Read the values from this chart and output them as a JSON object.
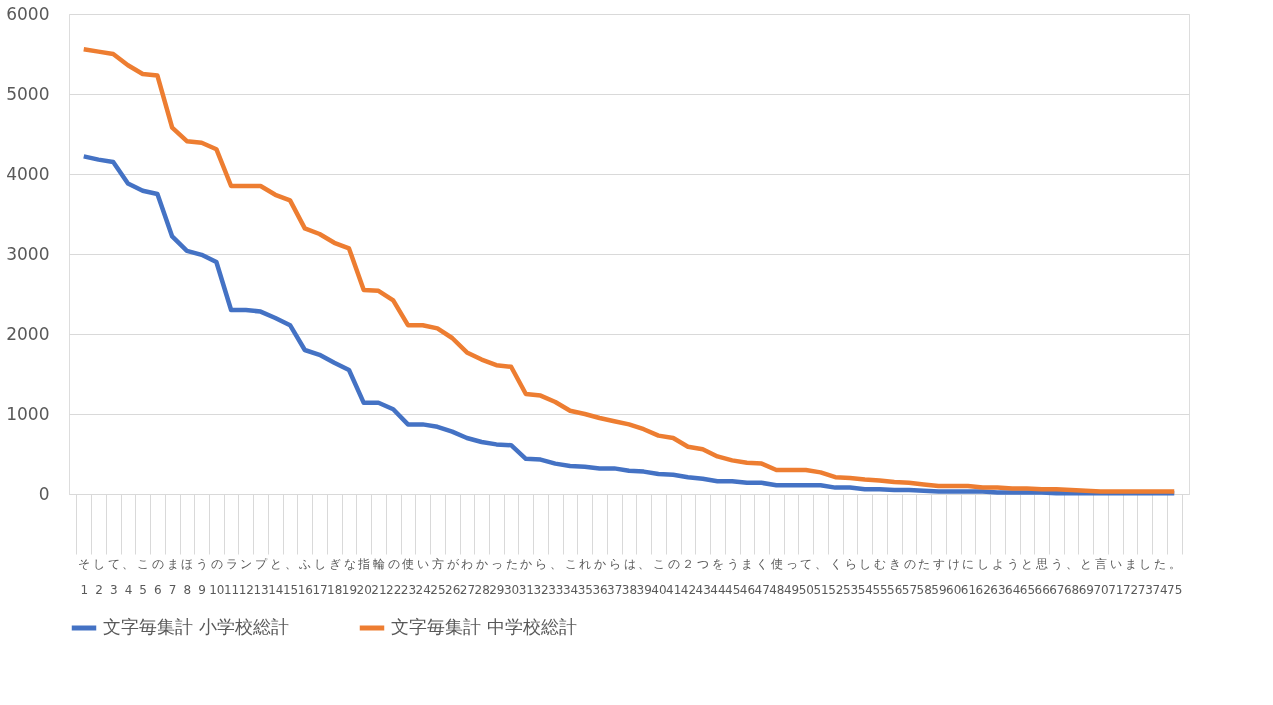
{
  "chart_data": {
    "type": "line",
    "categories": [
      "そ\n1",
      "し\n2",
      "て\n3",
      "、\n4",
      "こ\n5",
      "の\n6",
      "ま\n7",
      "ほ\n8",
      "う\n9",
      "の\n10",
      "ラ\n11",
      "ン\n12",
      "プ\n13",
      "と\n14",
      "、\n15",
      "ふ\n16",
      "し\n17",
      "ぎ\n18",
      "な\n19",
      "指\n20",
      "輪\n21",
      "の\n22",
      "使\n23",
      "い\n24",
      "方\n25",
      "が\n26",
      "わ\n27",
      "か\n28",
      "っ\n29",
      "た\n30",
      "か\n31",
      "ら\n32",
      "、\n33",
      "こ\n34",
      "れ\n35",
      "か\n36",
      "ら\n37",
      "は\n38",
      "、\n39",
      "こ\n40",
      "の\n41",
      "２\n42",
      "つ\n43",
      "を\n44",
      "う\n45",
      "ま\n46",
      "く\n47",
      "使\n48",
      "っ\n49",
      "て\n50",
      "、\n51",
      "く\n52",
      "ら\n53",
      "し\n54",
      "む\n55",
      "き\n56",
      "の\n57",
      "た\n58",
      "す\n59",
      "け\n60",
      "に\n61",
      "し\n62",
      "よ\n63",
      "う\n64",
      "と\n65",
      "思\n66",
      "う\n67",
      "、\n68",
      "と\n69",
      "言\n70",
      "い\n71",
      "ま\n72",
      "し\n73",
      "た\n74",
      "。\n75"
    ],
    "series": [
      {
        "name": "文字毎集計 小学校総計",
        "color": "#4472c4",
        "values": [
          4220,
          4180,
          4150,
          3880,
          3790,
          3750,
          3220,
          3040,
          2990,
          2900,
          2300,
          2300,
          2280,
          2200,
          2110,
          1800,
          1740,
          1640,
          1550,
          1140,
          1140,
          1060,
          870,
          870,
          840,
          780,
          700,
          650,
          620,
          610,
          440,
          430,
          380,
          350,
          340,
          320,
          320,
          290,
          280,
          250,
          240,
          210,
          190,
          160,
          160,
          140,
          140,
          110,
          110,
          110,
          110,
          80,
          80,
          60,
          60,
          50,
          50,
          40,
          30,
          30,
          30,
          30,
          20,
          20,
          20,
          20,
          10,
          10,
          10,
          10,
          10,
          10,
          10,
          10,
          10
        ]
      },
      {
        "name": "文字毎集計 中学校総計",
        "color": "#ed7d31",
        "values": [
          5560,
          5530,
          5500,
          5360,
          5250,
          5230,
          4580,
          4410,
          4390,
          4310,
          3850,
          3850,
          3850,
          3740,
          3670,
          3320,
          3250,
          3140,
          3070,
          2550,
          2540,
          2420,
          2110,
          2110,
          2070,
          1950,
          1770,
          1680,
          1610,
          1590,
          1250,
          1230,
          1150,
          1040,
          1000,
          950,
          910,
          870,
          810,
          730,
          700,
          590,
          560,
          470,
          420,
          390,
          380,
          300,
          300,
          300,
          270,
          210,
          200,
          180,
          170,
          150,
          140,
          120,
          100,
          100,
          100,
          80,
          80,
          70,
          70,
          60,
          60,
          50,
          40,
          30,
          30,
          30,
          30,
          30,
          30
        ]
      }
    ],
    "ylim": [
      0,
      6000
    ],
    "yticks": [
      0,
      1000,
      2000,
      3000,
      4000,
      5000,
      6000
    ],
    "grid": "y",
    "legend": "bottom",
    "marker": "none",
    "line_style": "solid"
  }
}
